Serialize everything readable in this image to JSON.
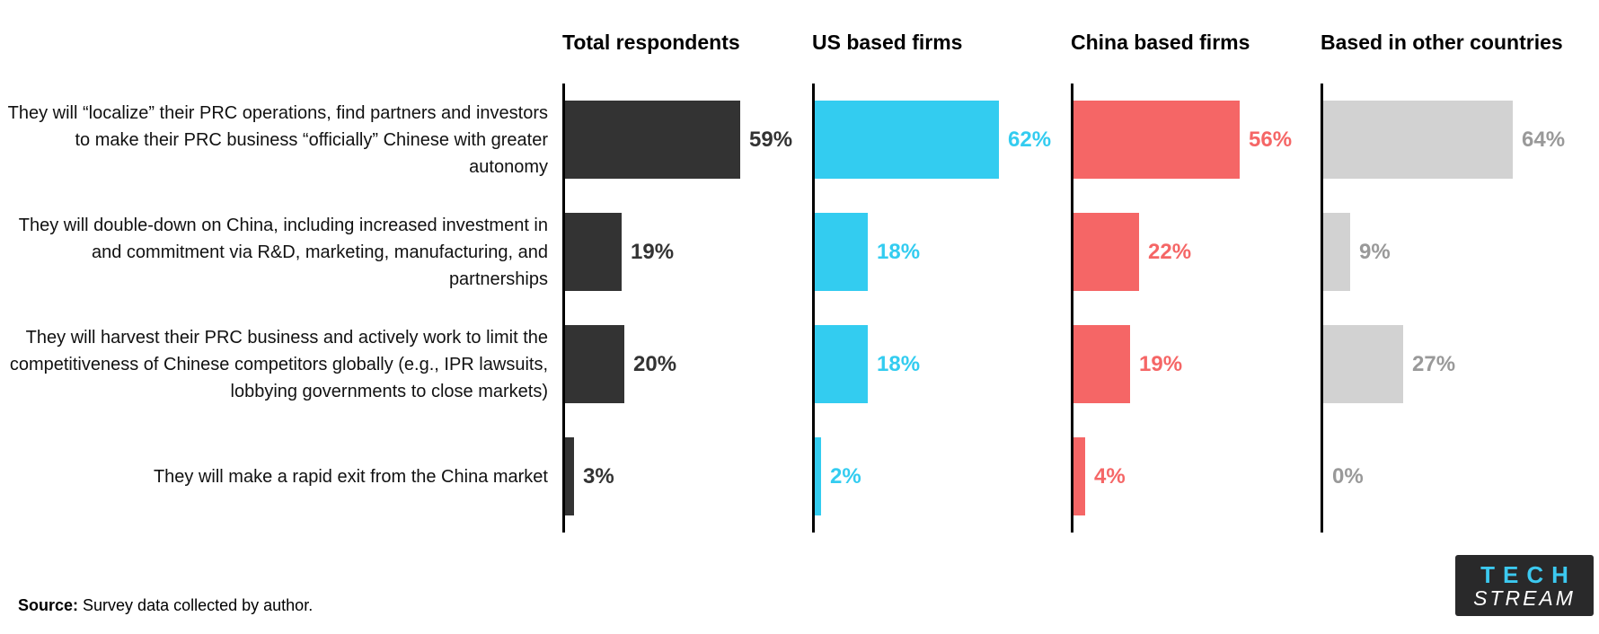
{
  "chart_data": {
    "type": "bar",
    "orientation": "horizontal",
    "title": "",
    "value_suffix": "%",
    "xlim": [
      0,
      70
    ],
    "grid": false,
    "legend": "none (panel headers act as series labels)",
    "axis_color": "#000000",
    "categories": [
      "They will “localize” their PRC operations, find partners and investors to make their PRC business “officially” Chinese with greater autonomy",
      "They will double-down on China, including increased investment in and commitment via R&D, marketing, manufacturing, and partnerships",
      "They will harvest their PRC business and actively work to limit the competitiveness of Chinese competitors globally (e.g., IPR lawsuits, lobbying governments to close markets)",
      "They will make a rapid exit from the China market"
    ],
    "series": [
      {
        "name": "Total respondents",
        "color": "#333333",
        "value_label_color": "#333333",
        "values": [
          59,
          19,
          20,
          3
        ]
      },
      {
        "name": "US based firms",
        "color": "#33CCF0",
        "value_label_color": "#33CCF0",
        "values": [
          62,
          18,
          18,
          2
        ]
      },
      {
        "name": "China based firms",
        "color": "#F56666",
        "value_label_color": "#F56666",
        "values": [
          56,
          22,
          19,
          4
        ]
      },
      {
        "name": "Based in other countries",
        "color": "#D2D2D2",
        "value_label_color": "#999999",
        "values": [
          64,
          9,
          27,
          0
        ]
      }
    ]
  },
  "footer": {
    "source_label": "Source:",
    "source_text": " Survey data collected by author."
  },
  "logo": {
    "line1": "TECH",
    "line2": "STREAM",
    "bg_color": "#29292a",
    "line1_color": "#3CC9F0",
    "line2_color": "#FFFFFF"
  }
}
